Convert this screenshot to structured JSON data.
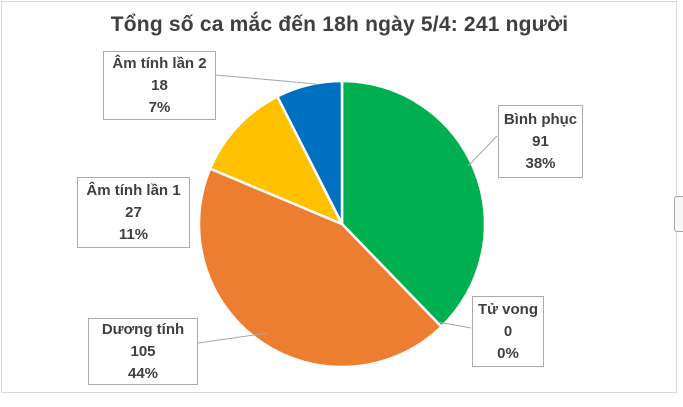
{
  "chart_data": {
    "type": "pie",
    "title": "Tổng số ca mắc đến 18h ngày 5/4: 241 người",
    "total": 241,
    "categories": [
      "Bình phục",
      "Tử vong",
      "Dương tính",
      "Âm tính lần 1",
      "Âm tính lần 2"
    ],
    "values": [
      91,
      0,
      105,
      27,
      18
    ],
    "percent_labels": [
      "38%",
      "0%",
      "44%",
      "11%",
      "7%"
    ],
    "colors": [
      "#00B050",
      null,
      "#ED7D31",
      "#FFC000",
      "#0070C0"
    ],
    "start_angle": "12-o-clock",
    "direction": "clockwise",
    "legend_position": "none",
    "label_style": "callout boxes with leader lines",
    "slice_border_color": "#FFFFFF"
  }
}
